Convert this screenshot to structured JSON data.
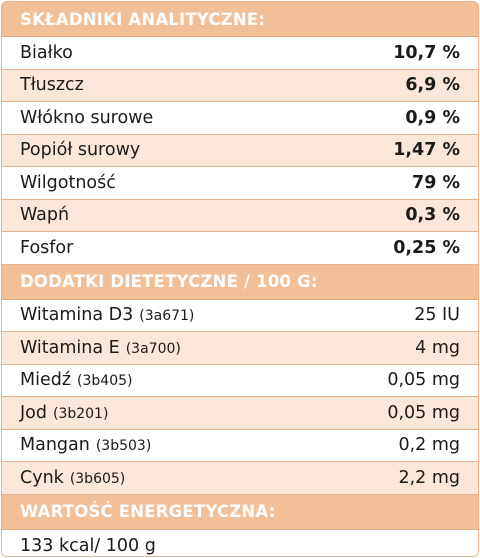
{
  "analytical": {
    "header": "SKŁADNIKI ANALITYCZNE:",
    "rows": [
      {
        "label": "Białko",
        "value": "10,7 %"
      },
      {
        "label": "Tłuszcz",
        "value": "6,9 %"
      },
      {
        "label": "Włókno surowe",
        "value": "0,9 %"
      },
      {
        "label": "Popiół surowy",
        "value": "1,47 %"
      },
      {
        "label": "Wilgotność",
        "value": "79 %"
      },
      {
        "label": "Wapń",
        "value": "0,3 %"
      },
      {
        "label": "Fosfor",
        "value": "0,25 %"
      }
    ]
  },
  "additives": {
    "header": "DODATKI DIETETYCZNE / 100 G:",
    "rows": [
      {
        "label": "Witamina D3",
        "code": "(3a671)",
        "value": "25 IU"
      },
      {
        "label": "Witamina E",
        "code": "(3a700)",
        "value": "4 mg"
      },
      {
        "label": "Miedź",
        "code": "(3b405)",
        "value": "0,05 mg"
      },
      {
        "label": "Jod",
        "code": "(3b201)",
        "value": "0,05 mg"
      },
      {
        "label": "Mangan",
        "code": "(3b503)",
        "value": "0,2 mg"
      },
      {
        "label": "Cynk",
        "code": "(3b605)",
        "value": "2,2 mg"
      }
    ]
  },
  "energy": {
    "header": "WARTOŚĆ ENERGETYCZNA:",
    "value": "133 kcal/ 100 g"
  },
  "colors": {
    "header_bg": "#f2bf97",
    "row_alt_bg": "#fbe7d9",
    "border": "#e7b48f"
  }
}
